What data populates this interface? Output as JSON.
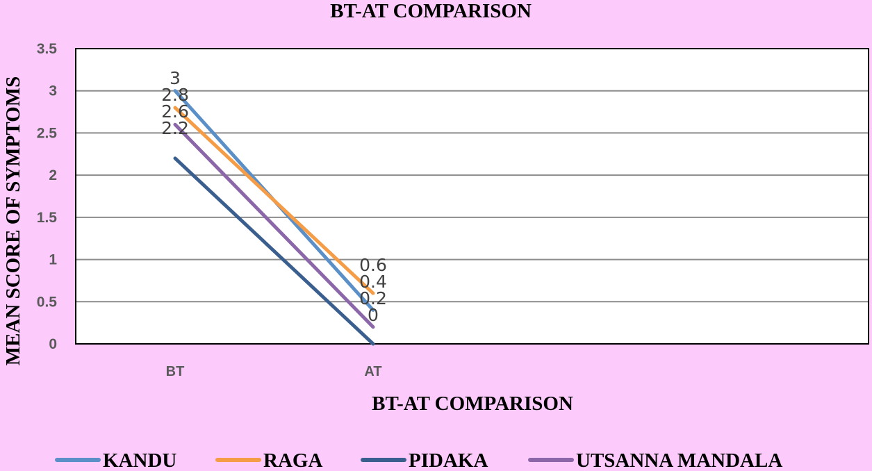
{
  "chart_data": {
    "type": "line",
    "title": "BT-AT COMPARISON",
    "xlabel": "BT-AT COMPARISON",
    "ylabel": "MEAN SCORE OF SYMPTOMS",
    "categories": [
      "BT",
      "AT"
    ],
    "ylim": [
      0,
      3.5
    ],
    "yticks": [
      "0",
      "0.5",
      "1",
      "1.5",
      "2",
      "2.5",
      "3",
      "3.5"
    ],
    "grid": true,
    "legend_position": "bottom",
    "series": [
      {
        "name": "KANDU",
        "values": [
          3,
          0.4
        ],
        "color": "#5b8fc7",
        "labels": [
          "3",
          "0.4"
        ]
      },
      {
        "name": "RAGA",
        "values": [
          2.8,
          0.6
        ],
        "color": "#f59c47",
        "labels": [
          "2.8",
          "0.6"
        ]
      },
      {
        "name": "PIDAKA",
        "values": [
          2.2,
          0
        ],
        "color": "#3a5f8f",
        "labels": [
          "2.2",
          "0"
        ]
      },
      {
        "name": "UTSANNA MANDALA",
        "values": [
          2.6,
          0.2
        ],
        "color": "#8b66a8",
        "labels": [
          "2.6",
          "0.2"
        ]
      }
    ]
  }
}
